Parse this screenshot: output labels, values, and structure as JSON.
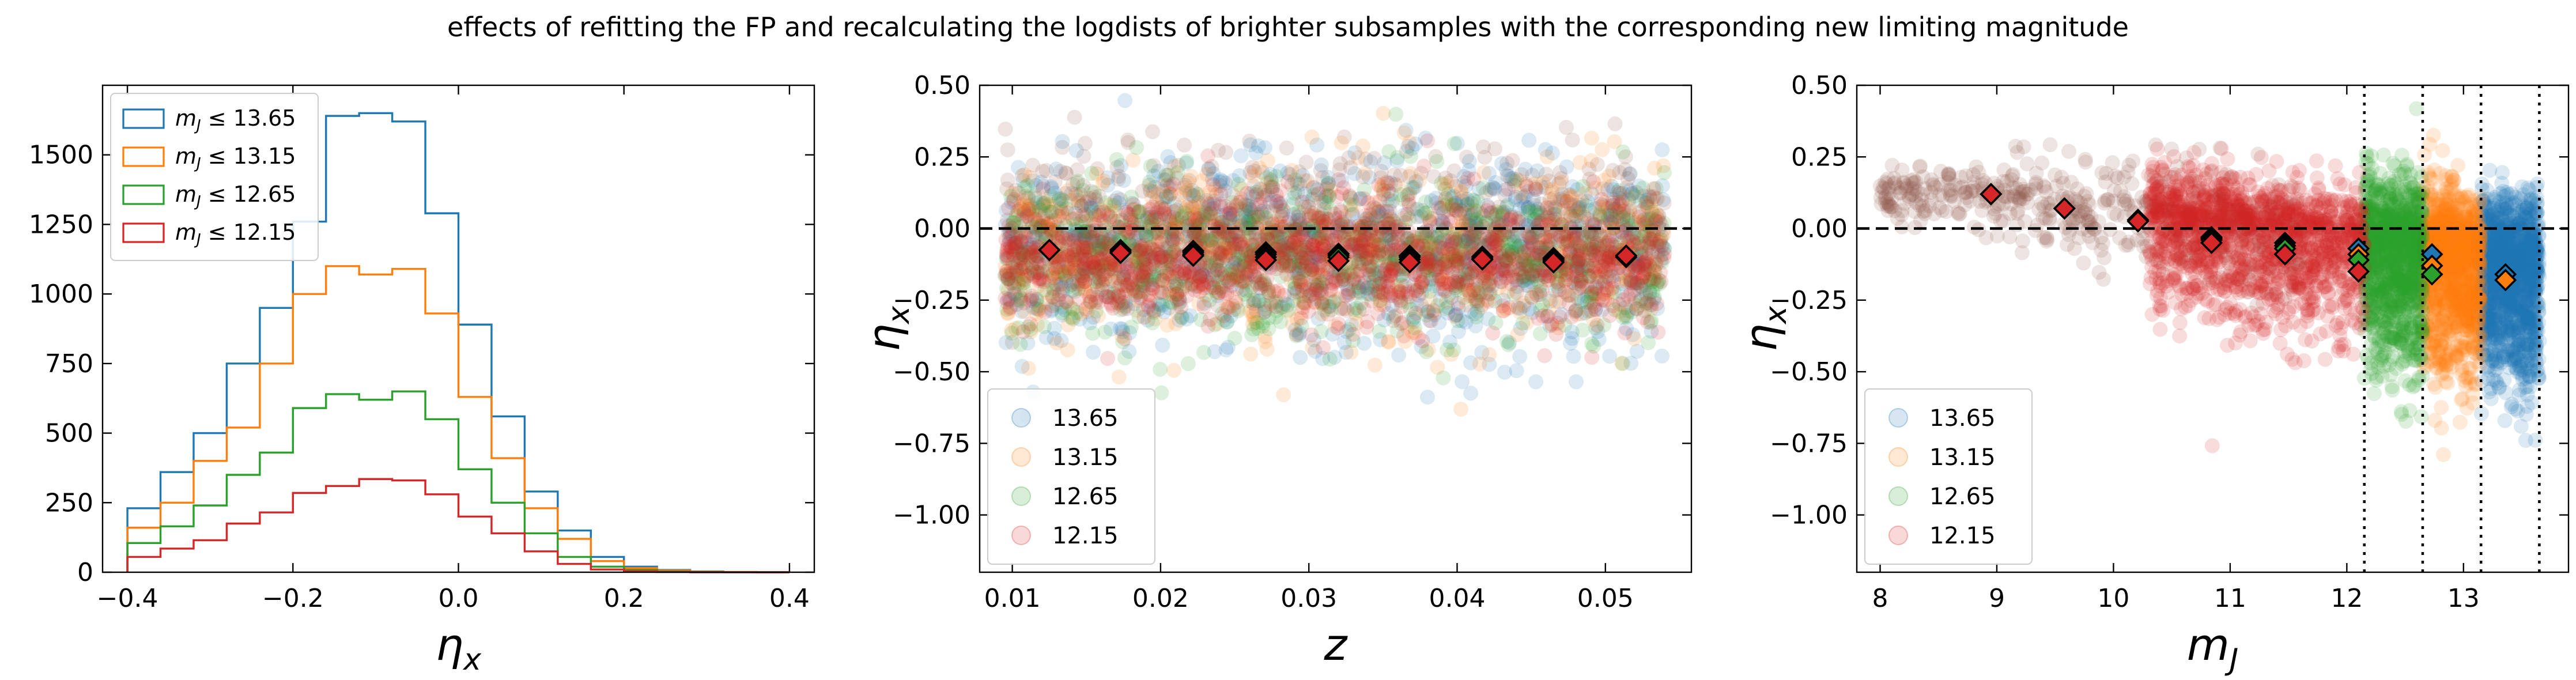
{
  "figure": {
    "suptitle": "effects of refitting the FP and recalculating the logdists of brighter subsamples with the corresponding new limiting magnitude"
  },
  "colors": {
    "c1365": "#1f77b4",
    "c1315": "#ff7f0e",
    "c1265": "#2ca02c",
    "c1215": "#d62728",
    "brown": "#8c564b",
    "axis": "#000000"
  },
  "chart_data": [
    {
      "type": "histogram",
      "xlabel": "η_x",
      "ylabel": "",
      "xlim": [
        -0.43,
        0.43
      ],
      "ylim": [
        0,
        1750
      ],
      "xticks": [
        -0.4,
        -0.2,
        0.0,
        0.2,
        0.4
      ],
      "xtick_labels": [
        "−0.4",
        "−0.2",
        "0.0",
        "0.2",
        "0.4"
      ],
      "yticks": [
        0,
        250,
        500,
        750,
        1000,
        1250,
        1500
      ],
      "ytick_labels": [
        "0",
        "250",
        "500",
        "750",
        "1000",
        "1250",
        "1500"
      ],
      "legend_position": "top-left",
      "bin_edges": [
        -0.4,
        -0.36,
        -0.32,
        -0.28,
        -0.24,
        -0.2,
        -0.16,
        -0.12,
        -0.08,
        -0.04,
        0.0,
        0.04,
        0.08,
        0.12,
        0.16,
        0.2,
        0.24,
        0.28,
        0.32,
        0.36,
        0.4
      ],
      "series": [
        {
          "name": "m_J ≤ 13.65",
          "legend_main": "m",
          "legend_sub": "J",
          "legend_rest": " ≤ 13.65",
          "color_key": "c1365",
          "values": [
            230,
            360,
            500,
            750,
            950,
            1260,
            1640,
            1650,
            1620,
            1290,
            890,
            560,
            290,
            150,
            55,
            20,
            8,
            3,
            1,
            0
          ]
        },
        {
          "name": "m_J ≤ 13.15",
          "legend_main": "m",
          "legend_sub": "J",
          "legend_rest": " ≤ 13.15",
          "color_key": "c1315",
          "values": [
            160,
            250,
            400,
            520,
            750,
            1000,
            1100,
            1070,
            1090,
            930,
            630,
            410,
            230,
            120,
            40,
            15,
            6,
            2,
            1,
            0
          ]
        },
        {
          "name": "m_J ≤ 12.65",
          "legend_main": "m",
          "legend_sub": "J",
          "legend_rest": " ≤ 12.65",
          "color_key": "c1265",
          "values": [
            105,
            165,
            240,
            350,
            430,
            590,
            640,
            620,
            650,
            550,
            370,
            250,
            140,
            55,
            20,
            8,
            3,
            1,
            0,
            0
          ]
        },
        {
          "name": "m_J ≤ 12.15",
          "legend_main": "m",
          "legend_sub": "J",
          "legend_rest": " ≤ 12.15",
          "color_key": "c1215",
          "values": [
            55,
            85,
            115,
            175,
            215,
            285,
            310,
            335,
            330,
            280,
            200,
            140,
            75,
            30,
            10,
            4,
            1,
            0,
            0,
            0
          ]
        }
      ]
    },
    {
      "type": "scatter",
      "xlabel": "z",
      "ylabel": "η_x",
      "xlim": [
        0.0078,
        0.0558
      ],
      "ylim": [
        -1.2,
        0.5
      ],
      "xticks": [
        0.01,
        0.02,
        0.03,
        0.04,
        0.05
      ],
      "xtick_labels": [
        "0.01",
        "0.02",
        "0.03",
        "0.04",
        "0.05"
      ],
      "yticks": [
        -1.0,
        -0.75,
        -0.5,
        -0.25,
        0.0,
        0.25,
        0.5
      ],
      "ytick_labels": [
        "−1.00",
        "−0.75",
        "−0.50",
        "−0.25",
        "0.00",
        "0.25",
        "0.50"
      ],
      "reference_line_y": 0.0,
      "legend_position": "bottom-left",
      "legend": [
        {
          "label": "13.65",
          "color_key": "c1365"
        },
        {
          "label": "13.15",
          "color_key": "c1315"
        },
        {
          "label": "12.65",
          "color_key": "c1265"
        },
        {
          "label": "12.15",
          "color_key": "c1215"
        }
      ],
      "binned_means": [
        {
          "color_key": "c1365",
          "x": [
            0.0125,
            0.0173,
            0.0222,
            0.0271,
            0.032,
            0.0368,
            0.0417,
            0.0465,
            0.0514
          ],
          "y": [
            -0.075,
            -0.075,
            -0.078,
            -0.083,
            -0.088,
            -0.095,
            -0.098,
            -0.103,
            -0.095
          ]
        },
        {
          "color_key": "c1315",
          "x": [
            0.0125,
            0.0173,
            0.0222,
            0.0271,
            0.032,
            0.0368,
            0.0417,
            0.0465,
            0.0514
          ],
          "y": [
            -0.075,
            -0.08,
            -0.083,
            -0.09,
            -0.093,
            -0.1,
            -0.103,
            -0.108,
            -0.095
          ]
        },
        {
          "color_key": "c1265",
          "x": [
            0.0125,
            0.0173,
            0.0222,
            0.0271,
            0.032,
            0.0368,
            0.0417,
            0.0465,
            0.0514
          ],
          "y": [
            -0.075,
            -0.085,
            -0.09,
            -0.1,
            -0.1,
            -0.108,
            -0.108,
            -0.113,
            -0.1
          ]
        },
        {
          "color_key": "c1215",
          "x": [
            0.0125,
            0.0173,
            0.0222,
            0.0271,
            0.032,
            0.0368,
            0.0417,
            0.0465,
            0.0514
          ],
          "y": [
            -0.075,
            -0.085,
            -0.095,
            -0.11,
            -0.113,
            -0.118,
            -0.108,
            -0.118,
            -0.095
          ]
        }
      ]
    },
    {
      "type": "scatter",
      "xlabel": "m_J",
      "ylabel": "η_x",
      "xlim": [
        7.8,
        13.9
      ],
      "ylim": [
        -1.2,
        0.5
      ],
      "xticks": [
        8,
        9,
        10,
        11,
        12,
        13
      ],
      "xtick_labels": [
        "8",
        "9",
        "10",
        "11",
        "12",
        "13"
      ],
      "yticks": [
        -1.0,
        -0.75,
        -0.5,
        -0.25,
        0.0,
        0.25,
        0.5
      ],
      "ytick_labels": [
        "−1.00",
        "−0.75",
        "−0.50",
        "−0.25",
        "0.00",
        "0.25",
        "0.50"
      ],
      "reference_line_y": 0.0,
      "limit_lines_x": [
        12.15,
        12.65,
        13.15,
        13.65
      ],
      "legend_position": "bottom-left",
      "legend": [
        {
          "label": "13.65",
          "color_key": "c1365"
        },
        {
          "label": "13.15",
          "color_key": "c1315"
        },
        {
          "label": "12.65",
          "color_key": "c1265"
        },
        {
          "label": "12.15",
          "color_key": "c1215"
        }
      ],
      "binned_means": [
        {
          "color_key": "c1365",
          "x": [
            8.95,
            9.58,
            10.21,
            10.84,
            11.47,
            12.1,
            12.73,
            13.36
          ],
          "y": [
            0.12,
            0.07,
            0.03,
            -0.03,
            -0.05,
            -0.07,
            -0.09,
            -0.16
          ]
        },
        {
          "color_key": "c1315",
          "x": [
            8.95,
            9.58,
            10.21,
            10.84,
            11.47,
            12.1,
            12.73,
            13.36
          ],
          "y": [
            0.12,
            0.07,
            0.03,
            -0.035,
            -0.06,
            -0.09,
            -0.13,
            -0.18
          ]
        },
        {
          "color_key": "c1265",
          "x": [
            8.95,
            9.58,
            10.21,
            10.84,
            11.47,
            12.1,
            12.73
          ],
          "y": [
            0.12,
            0.07,
            0.03,
            -0.04,
            -0.07,
            -0.11,
            -0.16
          ]
        },
        {
          "color_key": "c1215",
          "x": [
            8.95,
            9.58,
            10.21,
            10.84,
            11.47,
            12.1
          ],
          "y": [
            0.12,
            0.07,
            0.025,
            -0.05,
            -0.09,
            -0.15
          ]
        }
      ]
    }
  ]
}
